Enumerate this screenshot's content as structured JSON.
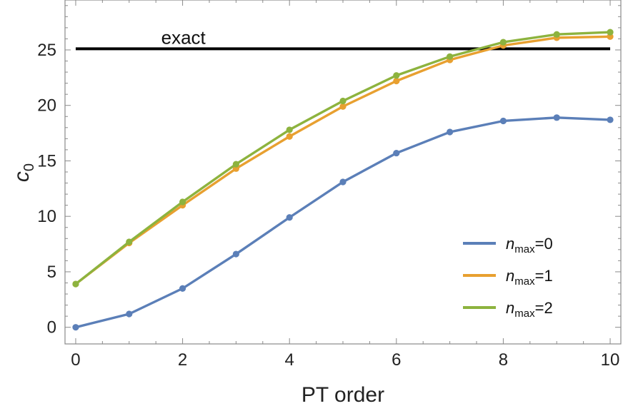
{
  "chart_data": {
    "type": "line",
    "xlabel": "PT order",
    "ylabel": {
      "base": "c",
      "sub": "0"
    },
    "xlim": [
      -0.2,
      10.2
    ],
    "ylim": [
      -1.5,
      29.5
    ],
    "x_ticks": [
      0,
      2,
      4,
      6,
      8,
      10
    ],
    "y_ticks": [
      0,
      5,
      10,
      15,
      20,
      25
    ],
    "grid": false,
    "legend_position": "bottom-right",
    "x": [
      0,
      1,
      2,
      3,
      4,
      5,
      6,
      7,
      8,
      9,
      10
    ],
    "series": [
      {
        "name": {
          "base": "n",
          "sub": "max",
          "suffix": "=0"
        },
        "color": "#5b7fb8",
        "values": [
          0.0,
          1.2,
          3.5,
          6.6,
          9.9,
          13.1,
          15.7,
          17.6,
          18.6,
          18.9,
          18.7
        ]
      },
      {
        "name": {
          "base": "n",
          "sub": "max",
          "suffix": "=1"
        },
        "color": "#e8a030",
        "values": [
          3.9,
          7.6,
          11.0,
          14.3,
          17.2,
          19.9,
          22.2,
          24.1,
          25.4,
          26.1,
          26.2
        ]
      },
      {
        "name": {
          "base": "n",
          "sub": "max",
          "suffix": "=2"
        },
        "color": "#8db33e",
        "values": [
          3.9,
          7.7,
          11.3,
          14.7,
          17.8,
          20.4,
          22.7,
          24.4,
          25.7,
          26.4,
          26.6
        ]
      }
    ],
    "reference_line": {
      "label": "exact",
      "y": 25.1,
      "color": "#000000"
    }
  }
}
